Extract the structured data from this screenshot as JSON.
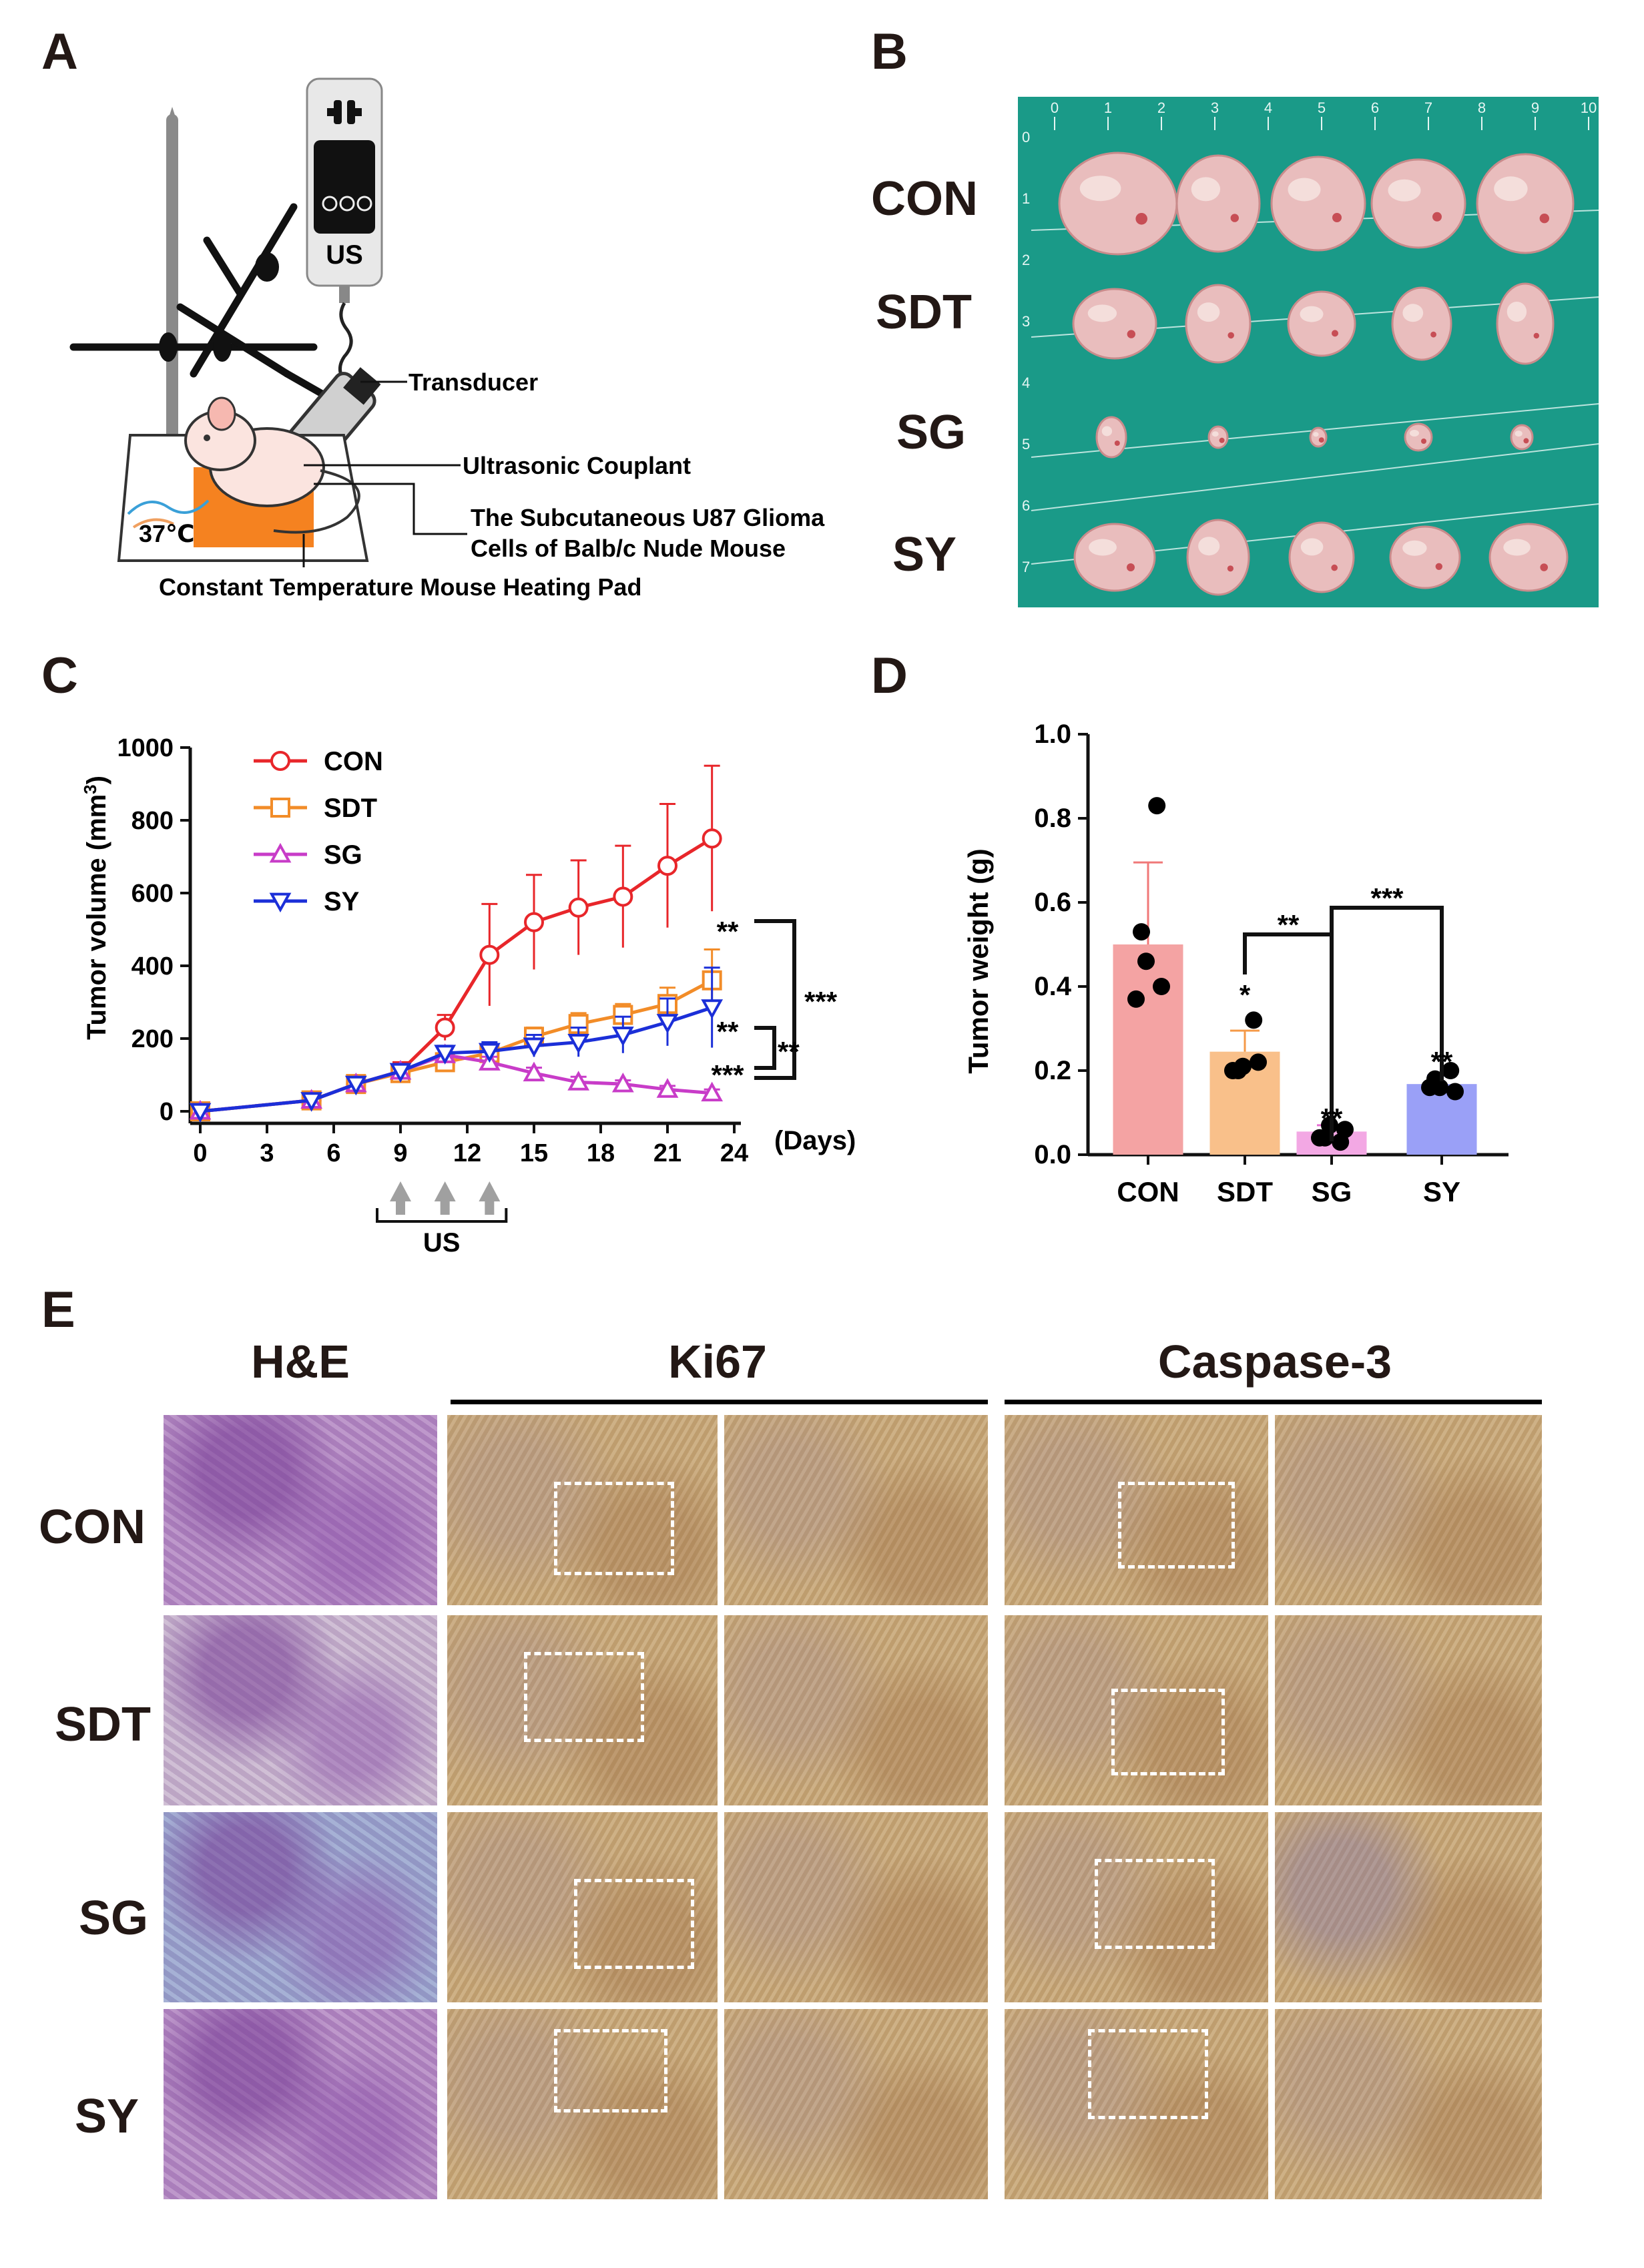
{
  "panels": {
    "a": "A",
    "b": "B",
    "c": "C",
    "d": "D",
    "e": "E"
  },
  "panel_a": {
    "device": "US",
    "temp": "37℃",
    "callouts": {
      "transducer": "Transducer",
      "couplant": "Ultrasonic Couplant",
      "cells_line1": "The Subcutaneous U87 Glioma",
      "cells_line2": "Cells of Balb/c Nude Mouse",
      "pad": "Constant Temperature Mouse Heating Pad"
    },
    "colors": {
      "pad": "#f58220",
      "device": "#e8e8e8",
      "screen": "#111111",
      "couplant": "#4a90d9"
    }
  },
  "panel_b": {
    "row_labels": [
      "CON",
      "SDT",
      "SG",
      "SY"
    ],
    "ruler_ticks": [
      "0",
      "1",
      "2",
      "3",
      "4",
      "5",
      "6",
      "7",
      "8",
      "9",
      "10"
    ],
    "side_ticks": [
      "0",
      "1",
      "2",
      "3",
      "4",
      "5",
      "6",
      "7"
    ],
    "colors": {
      "mat": "#1a9a88",
      "tumor": "#e8b8b8"
    }
  },
  "chart_data": [
    {
      "type": "line",
      "panel": "C",
      "ylabel": "Tumor volume (mm³)",
      "ylabel_main": "Tumor volume (mm",
      "ylabel_sup": "3",
      "ylabel_end": ")",
      "xlabel": "(Days)",
      "ylim": [
        0,
        1000
      ],
      "xlim": [
        0,
        24
      ],
      "x_ticks": [
        "0",
        "3",
        "6",
        "9",
        "12",
        "15",
        "18",
        "21",
        "24"
      ],
      "y_ticks": [
        "0",
        "200",
        "400",
        "600",
        "800",
        "1000"
      ],
      "x": [
        0,
        5,
        7,
        9,
        11,
        13,
        15,
        17,
        19,
        21,
        23
      ],
      "series": [
        {
          "name": "CON",
          "color": "#e8262a",
          "marker": "circle",
          "values": [
            0,
            30,
            75,
            110,
            230,
            430,
            520,
            560,
            590,
            675,
            750
          ],
          "err": [
            0,
            15,
            20,
            25,
            35,
            140,
            130,
            130,
            140,
            170,
            200
          ]
        },
        {
          "name": "SDT",
          "color": "#f28c28",
          "marker": "square",
          "values": [
            0,
            30,
            75,
            105,
            135,
            160,
            205,
            240,
            265,
            295,
            360
          ],
          "err": [
            0,
            10,
            15,
            20,
            20,
            25,
            25,
            30,
            30,
            45,
            85
          ]
        },
        {
          "name": "SG",
          "color": "#c83cc8",
          "marker": "triangle",
          "values": [
            0,
            30,
            75,
            110,
            155,
            135,
            105,
            80,
            75,
            60,
            50
          ],
          "err": [
            0,
            10,
            15,
            20,
            20,
            15,
            15,
            15,
            10,
            10,
            10
          ]
        },
        {
          "name": "SY",
          "color": "#1b2fd8",
          "marker": "triangle-down",
          "values": [
            0,
            30,
            75,
            110,
            160,
            165,
            180,
            190,
            210,
            245,
            285
          ],
          "err": [
            0,
            10,
            15,
            20,
            20,
            25,
            30,
            40,
            50,
            65,
            110
          ]
        }
      ],
      "annotations": {
        "sdt_star": "**",
        "sy_star": "**",
        "sg_star": "***",
        "br_con_sdt": "***",
        "br_sdt_sy": "**"
      },
      "treatment_label": "US",
      "treatment_days": [
        9,
        11,
        13
      ]
    },
    {
      "type": "bar",
      "panel": "D",
      "ylabel": "Tumor weight (g)",
      "categories": [
        "CON",
        "SDT",
        "SG",
        "SY"
      ],
      "values": [
        0.5,
        0.245,
        0.055,
        0.168
      ],
      "err": [
        0.195,
        0.05,
        0.015,
        0.02
      ],
      "colors": [
        "#f4a3a3",
        "#f9c08a",
        "#f3a8e4",
        "#9aa0f7"
      ],
      "err_colors": [
        "#f07878",
        "#f59a48",
        "#e56bd0",
        "#6b73f0"
      ],
      "points": [
        [
          0.83,
          0.53,
          0.46,
          0.4,
          0.37
        ],
        [
          0.32,
          0.2,
          0.21,
          0.22,
          0.2
        ],
        [
          0.03,
          0.04,
          0.07,
          0.06,
          0.04
        ],
        [
          0.2,
          0.18,
          0.16,
          0.15,
          0.16
        ]
      ],
      "ylim": [
        0,
        1.0
      ],
      "y_ticks": [
        "0.0",
        "0.2",
        "0.4",
        "0.6",
        "0.8",
        "1.0"
      ],
      "annotations": {
        "sdt_star": "*",
        "sg_star": "**",
        "sy_star": "**",
        "br_sdt_sg": "**",
        "br_sg_sy": "***"
      }
    }
  ],
  "panel_e": {
    "col_headers": [
      "H&E",
      "Ki67",
      "Caspase-3"
    ],
    "row_labels": [
      "CON",
      "SDT",
      "SG",
      "SY"
    ],
    "colors": {
      "he": "#b58ac4",
      "he_light": "#c9b6cf",
      "he_blue": "#9aa6cf",
      "ihc": "#c9a878",
      "ihc_blue": "#b9b0a0"
    }
  }
}
